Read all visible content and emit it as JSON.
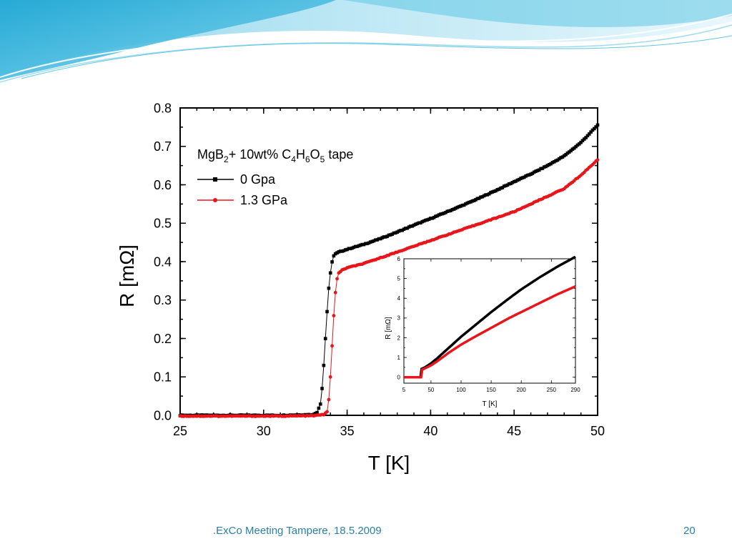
{
  "slide": {
    "footer_text": ".ExCo Meeting Tampere, 18.5.2009",
    "page_number": "20",
    "colors": {
      "banner_light": "#bfe6f4",
      "banner_mid": "#5fc6e3",
      "banner_dark": "#1aa5d2",
      "footer": "#2a7fa8"
    }
  },
  "chart_data": [
    {
      "type": "line",
      "xlabel": "T [K]",
      "ylabel": "R [mΩ]",
      "xlim": [
        25,
        50
      ],
      "ylim": [
        0.0,
        0.8
      ],
      "xticks": [
        25,
        30,
        35,
        40,
        45,
        50
      ],
      "xtick_labels": [
        "25",
        "30",
        "35",
        "40",
        "45",
        "50"
      ],
      "yticks": [
        0.0,
        0.1,
        0.2,
        0.3,
        0.4,
        0.5,
        0.6,
        0.7,
        0.8
      ],
      "ytick_labels": [
        "0.0",
        "0.1",
        "0.2",
        "0.3",
        "0.4",
        "0.5",
        "0.6",
        "0.7",
        "0.8"
      ],
      "legend": {
        "title_parts": [
          "MgB",
          "2",
          "+ 10wt% C",
          "4",
          "H",
          "6",
          "O",
          "5",
          " tape"
        ],
        "placement": "top-left"
      },
      "series": [
        {
          "name": "0 Gpa",
          "color": "#000000",
          "marker": "square",
          "x": [
            25,
            27,
            29,
            31,
            33,
            33.2,
            33.4,
            33.5,
            33.6,
            33.7,
            33.8,
            33.9,
            34.0,
            34.1,
            34.2,
            34.3,
            34.5,
            35,
            36,
            37,
            38,
            39,
            40,
            41,
            42,
            43,
            44,
            45,
            46,
            47,
            48,
            49,
            50
          ],
          "y": [
            0.0,
            0.0,
            0.0,
            0.0,
            0.002,
            0.008,
            0.03,
            0.07,
            0.13,
            0.2,
            0.27,
            0.33,
            0.37,
            0.4,
            0.415,
            0.42,
            0.425,
            0.432,
            0.445,
            0.46,
            0.477,
            0.495,
            0.512,
            0.53,
            0.548,
            0.567,
            0.587,
            0.608,
            0.628,
            0.65,
            0.675,
            0.71,
            0.755
          ]
        },
        {
          "name": "1.3 GPa",
          "color": "#e8151b",
          "marker": "circle",
          "x": [
            25,
            27,
            29,
            31,
            33,
            33.6,
            33.8,
            33.9,
            34.0,
            34.1,
            34.2,
            34.3,
            34.4,
            34.5,
            34.7,
            35,
            36,
            37,
            38,
            39,
            40,
            41,
            42,
            43,
            44,
            45,
            46,
            47,
            48,
            49,
            50
          ],
          "y": [
            -0.002,
            -0.002,
            -0.002,
            -0.002,
            -0.001,
            0.002,
            0.01,
            0.04,
            0.1,
            0.18,
            0.26,
            0.32,
            0.355,
            0.37,
            0.378,
            0.384,
            0.395,
            0.41,
            0.425,
            0.44,
            0.455,
            0.47,
            0.485,
            0.5,
            0.515,
            0.53,
            0.55,
            0.57,
            0.59,
            0.625,
            0.665
          ]
        }
      ]
    },
    {
      "type": "line",
      "xlabel": "T [K]",
      "ylabel": "R [mΩ]",
      "xlim": [
        5,
        290
      ],
      "ylim": [
        -0.3,
        6
      ],
      "xticks": [
        5,
        50,
        100,
        150,
        200,
        250,
        290
      ],
      "xtick_labels": [
        "5",
        "50",
        "100",
        "150",
        "200",
        "250",
        "290"
      ],
      "yticks": [
        0,
        1,
        2,
        3,
        4,
        5,
        6
      ],
      "ytick_labels": [
        "0",
        "1",
        "2",
        "3",
        "4",
        "5",
        "6"
      ],
      "series": [
        {
          "color": "#000000",
          "x": [
            5,
            20,
            33,
            34,
            35,
            40,
            50,
            60,
            80,
            100,
            120,
            150,
            180,
            200,
            230,
            260,
            290
          ],
          "y": [
            0.0,
            0.0,
            0.0,
            0.42,
            0.43,
            0.5,
            0.7,
            0.95,
            1.5,
            2.05,
            2.55,
            3.3,
            4.0,
            4.45,
            5.05,
            5.6,
            6.1
          ]
        },
        {
          "color": "#e8151b",
          "x": [
            5,
            20,
            34,
            35,
            36,
            40,
            50,
            60,
            80,
            100,
            120,
            150,
            180,
            200,
            230,
            260,
            290
          ],
          "y": [
            0.0,
            0.0,
            0.0,
            0.38,
            0.39,
            0.45,
            0.6,
            0.8,
            1.25,
            1.65,
            2.0,
            2.5,
            3.0,
            3.3,
            3.75,
            4.2,
            4.6
          ]
        }
      ]
    }
  ]
}
